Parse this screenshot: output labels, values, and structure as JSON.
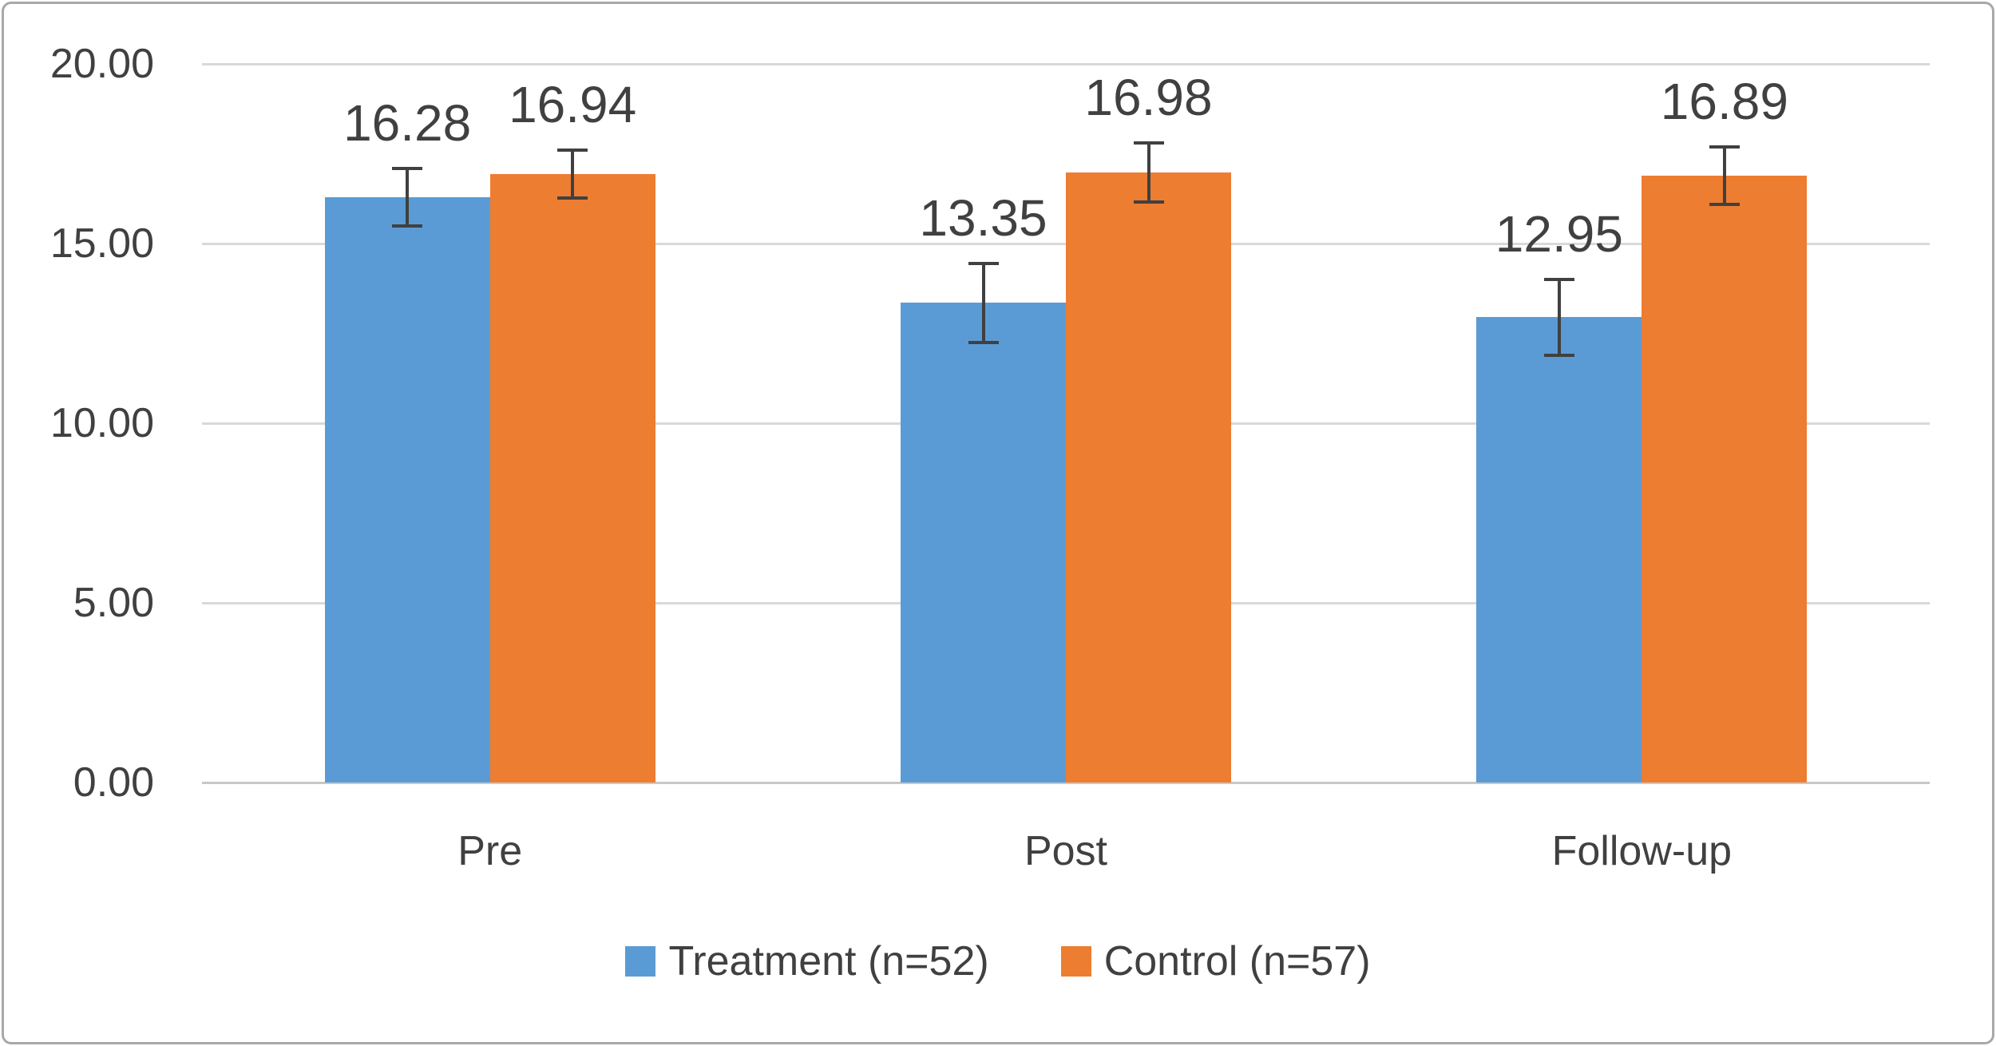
{
  "chart_data": {
    "type": "bar",
    "title": "",
    "categories": [
      "Pre",
      "Post",
      "Follow-up"
    ],
    "series": [
      {
        "name": "Treatment (n=52)",
        "key": "treatment",
        "color": "#5B9BD5",
        "values": [
          16.28,
          13.35,
          12.95
        ],
        "data_labels": [
          "16.28",
          "13.35",
          "12.95"
        ],
        "errors": [
          0.8,
          1.1,
          1.05
        ]
      },
      {
        "name": "Control (n=57)",
        "key": "control",
        "color": "#ED7D31",
        "values": [
          16.94,
          16.98,
          16.89
        ],
        "data_labels": [
          "16.94",
          "16.98",
          "16.89"
        ],
        "errors": [
          0.67,
          0.82,
          0.81
        ]
      }
    ],
    "xlabel": "",
    "ylabel": "",
    "ylim": [
      0,
      20
    ],
    "yticks": [
      0,
      5,
      10,
      15,
      20
    ],
    "ytick_labels": [
      "0.00",
      "5.00",
      "10.00",
      "15.00",
      "20.00"
    ],
    "grid": true,
    "legend_position": "bottom",
    "colors": {
      "error_bar": "#404040",
      "gridline": "#d9d9d9",
      "baseline": "#c8c8c8",
      "text": "#404040",
      "frame_border": "#a8a8a8"
    }
  }
}
